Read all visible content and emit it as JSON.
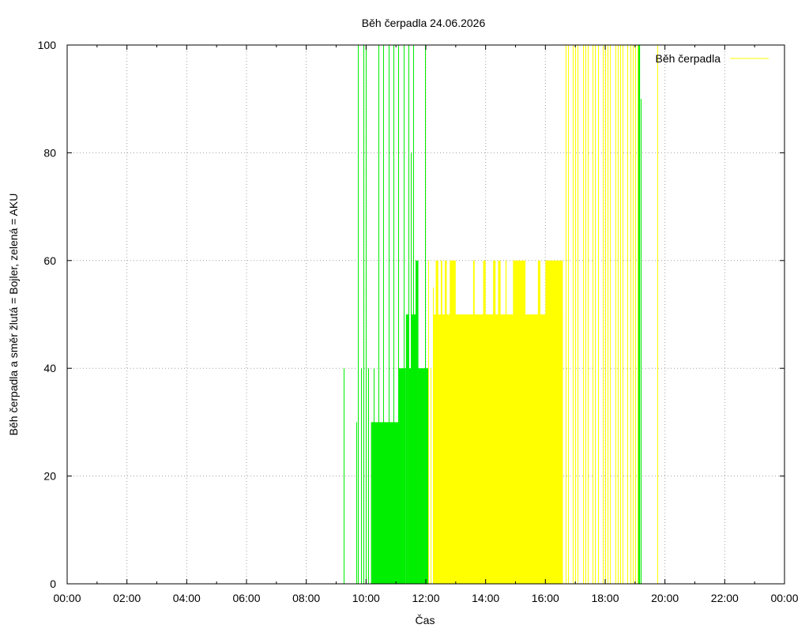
{
  "chart_data": {
    "type": "line",
    "title": "Běh čerpadla 24.06.2026",
    "xlabel": "Čas",
    "ylabel": "Běh čerpadla a směr žlutá = Bojler, zelená = AKU",
    "xlim": [
      "00:00",
      "24:00"
    ],
    "ylim": [
      0,
      100
    ],
    "x_ticks": [
      "00:00",
      "02:00",
      "04:00",
      "06:00",
      "08:00",
      "10:00",
      "12:00",
      "14:00",
      "16:00",
      "18:00",
      "20:00",
      "22:00",
      "00:00"
    ],
    "y_ticks": [
      "0",
      "20",
      "40",
      "60",
      "80",
      "100"
    ],
    "grid": true,
    "legend": {
      "position": "top-right",
      "entries": [
        "Běh čerpadla"
      ]
    },
    "series": [
      {
        "name": "Běh čerpadla",
        "color": "#ffff00",
        "spikes": [
          {
            "t": "12:05",
            "v": 60
          },
          {
            "t": "12:10",
            "v": 40
          },
          {
            "t": "12:15",
            "v": 55
          },
          {
            "t": "16:40",
            "v": 100
          },
          {
            "t": "16:45",
            "v": 100
          },
          {
            "t": "16:55",
            "v": 100
          },
          {
            "t": "17:00",
            "v": 100
          },
          {
            "t": "17:05",
            "v": 100
          },
          {
            "t": "17:15",
            "v": 100
          },
          {
            "t": "17:20",
            "v": 100
          },
          {
            "t": "17:25",
            "v": 100
          },
          {
            "t": "17:35",
            "v": 100
          },
          {
            "t": "17:40",
            "v": 100
          },
          {
            "t": "17:45",
            "v": 100
          },
          {
            "t": "17:55",
            "v": 100
          },
          {
            "t": "18:00",
            "v": 100
          },
          {
            "t": "18:05",
            "v": 100
          },
          {
            "t": "18:10",
            "v": 100
          },
          {
            "t": "18:20",
            "v": 100
          },
          {
            "t": "18:25",
            "v": 100
          },
          {
            "t": "18:30",
            "v": 100
          },
          {
            "t": "18:35",
            "v": 100
          },
          {
            "t": "18:45",
            "v": 100
          },
          {
            "t": "18:50",
            "v": 100
          },
          {
            "t": "18:55",
            "v": 100
          },
          {
            "t": "19:00",
            "v": 100
          },
          {
            "t": "19:05",
            "v": 100
          },
          {
            "t": "19:45",
            "v": 100
          }
        ],
        "blocks": [
          {
            "start": "12:15",
            "end": "16:35",
            "v": 50
          },
          {
            "start": "12:20",
            "end": "12:25",
            "v": 60
          },
          {
            "start": "12:30",
            "end": "12:33",
            "v": 60
          },
          {
            "start": "12:38",
            "end": "12:42",
            "v": 60
          },
          {
            "start": "12:48",
            "end": "13:00",
            "v": 60
          },
          {
            "start": "13:35",
            "end": "13:38",
            "v": 60
          },
          {
            "start": "13:55",
            "end": "14:00",
            "v": 60
          },
          {
            "start": "14:15",
            "end": "14:20",
            "v": 60
          },
          {
            "start": "14:25",
            "end": "14:30",
            "v": 60
          },
          {
            "start": "14:40",
            "end": "14:42",
            "v": 60
          },
          {
            "start": "14:55",
            "end": "15:20",
            "v": 60
          },
          {
            "start": "15:45",
            "end": "15:50",
            "v": 60
          },
          {
            "start": "16:00",
            "end": "16:35",
            "v": 60
          }
        ]
      },
      {
        "name": "",
        "color": "#00ee00",
        "spikes": [
          {
            "t": "09:15",
            "v": 40
          },
          {
            "t": "09:40",
            "v": 30
          },
          {
            "t": "09:43",
            "v": 100
          },
          {
            "t": "09:50",
            "v": 40
          },
          {
            "t": "09:55",
            "v": 100
          },
          {
            "t": "10:00",
            "v": 100
          },
          {
            "t": "10:05",
            "v": 40
          },
          {
            "t": "10:15",
            "v": 40
          },
          {
            "t": "10:25",
            "v": 100
          },
          {
            "t": "10:35",
            "v": 100
          },
          {
            "t": "10:45",
            "v": 100
          },
          {
            "t": "10:55",
            "v": 100
          },
          {
            "t": "11:05",
            "v": 100
          },
          {
            "t": "11:15",
            "v": 100
          },
          {
            "t": "11:25",
            "v": 100
          },
          {
            "t": "11:30",
            "v": 80
          },
          {
            "t": "11:35",
            "v": 100
          },
          {
            "t": "11:40",
            "v": 60
          },
          {
            "t": "11:58",
            "v": 100
          },
          {
            "t": "19:08",
            "v": 100
          },
          {
            "t": "19:11",
            "v": 90
          }
        ],
        "blocks": [
          {
            "start": "10:10",
            "end": "10:35",
            "v": 30
          },
          {
            "start": "10:35",
            "end": "11:05",
            "v": 30
          },
          {
            "start": "11:05",
            "end": "11:20",
            "v": 40
          },
          {
            "start": "11:20",
            "end": "11:25",
            "v": 50
          },
          {
            "start": "11:25",
            "end": "11:40",
            "v": 40
          },
          {
            "start": "11:30",
            "end": "11:45",
            "v": 50
          },
          {
            "start": "11:40",
            "end": "11:45",
            "v": 60
          },
          {
            "start": "11:45",
            "end": "12:05",
            "v": 40
          },
          {
            "start": "19:06",
            "end": "19:10",
            "v": 100
          }
        ]
      }
    ]
  }
}
